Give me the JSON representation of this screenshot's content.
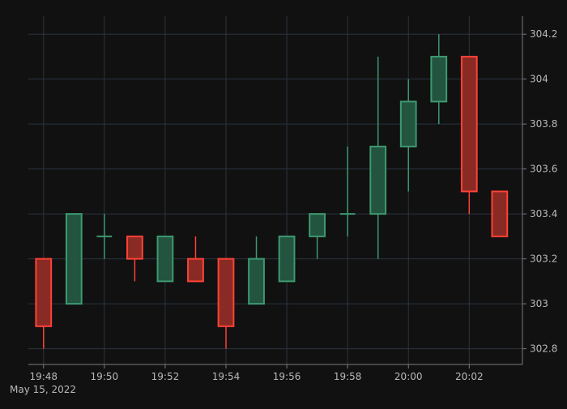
{
  "chart_data": {
    "type": "candlestick",
    "title": "",
    "xlabel": "",
    "ylabel": "",
    "date_label": "May 15, 2022",
    "ylim": [
      302.73,
      304.28
    ],
    "xlim": [
      "19:47:30",
      "20:03:45"
    ],
    "grid": true,
    "y_axis_side": "right",
    "x_ticks": [
      "19:48",
      "19:50",
      "19:52",
      "19:54",
      "19:56",
      "19:58",
      "20:00",
      "20:02"
    ],
    "y_ticks": [
      302.8,
      303,
      303.2,
      303.4,
      303.6,
      303.8,
      304,
      304.2
    ],
    "y_tick_labels": [
      "302.8",
      "303",
      "303.2",
      "303.4",
      "303.6",
      "303.8",
      "304",
      "304.2"
    ],
    "colors": {
      "background": "#111111",
      "increasing_line": "#3d9970",
      "increasing_fill": "#235440",
      "decreasing_line": "#ff4136",
      "decreasing_fill": "#8a2a24",
      "grid": "#2b3440",
      "text": "#b9b9b9"
    },
    "candles": [
      {
        "time": "19:48",
        "open": 303.2,
        "high": 303.2,
        "low": 302.8,
        "close": 302.9
      },
      {
        "time": "19:49",
        "open": 303.0,
        "high": 303.4,
        "low": 303.0,
        "close": 303.4
      },
      {
        "time": "19:50",
        "open": 303.3,
        "high": 303.4,
        "low": 303.2,
        "close": 303.3
      },
      {
        "time": "19:51",
        "open": 303.3,
        "high": 303.3,
        "low": 303.1,
        "close": 303.2
      },
      {
        "time": "19:52",
        "open": 303.1,
        "high": 303.3,
        "low": 303.1,
        "close": 303.3
      },
      {
        "time": "19:53",
        "open": 303.2,
        "high": 303.3,
        "low": 303.1,
        "close": 303.1
      },
      {
        "time": "19:54",
        "open": 303.2,
        "high": 303.2,
        "low": 302.8,
        "close": 302.9
      },
      {
        "time": "19:55",
        "open": 303.0,
        "high": 303.3,
        "low": 303.0,
        "close": 303.2
      },
      {
        "time": "19:56",
        "open": 303.1,
        "high": 303.3,
        "low": 303.1,
        "close": 303.3
      },
      {
        "time": "19:57",
        "open": 303.3,
        "high": 303.4,
        "low": 303.2,
        "close": 303.4
      },
      {
        "time": "19:58",
        "open": 303.4,
        "high": 303.7,
        "low": 303.3,
        "close": 303.4
      },
      {
        "time": "19:59",
        "open": 303.4,
        "high": 304.1,
        "low": 303.2,
        "close": 303.7
      },
      {
        "time": "20:00",
        "open": 303.7,
        "high": 304.0,
        "low": 303.5,
        "close": 303.9
      },
      {
        "time": "20:01",
        "open": 303.9,
        "high": 304.2,
        "low": 303.8,
        "close": 304.1
      },
      {
        "time": "20:02",
        "open": 304.1,
        "high": 304.1,
        "low": 303.4,
        "close": 303.5
      },
      {
        "time": "20:03",
        "open": 303.5,
        "high": 303.5,
        "low": 303.3,
        "close": 303.3
      }
    ]
  }
}
